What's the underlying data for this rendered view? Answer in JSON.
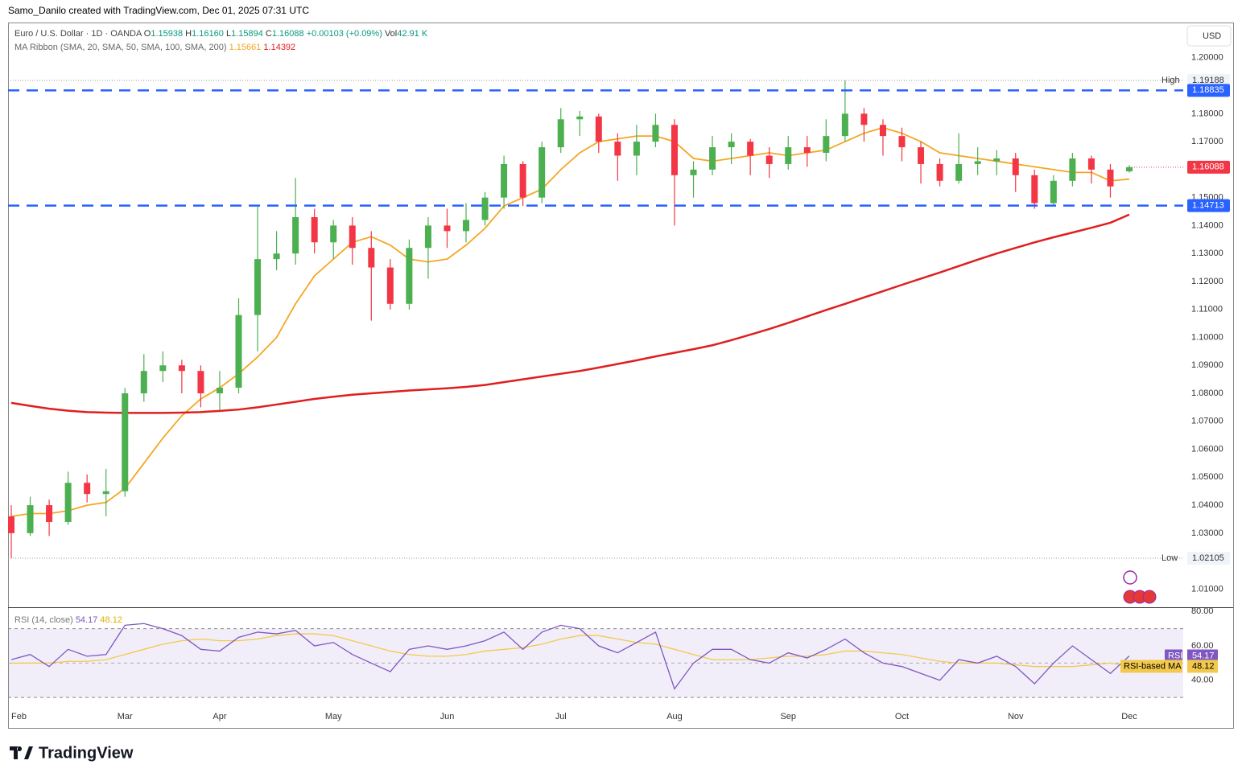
{
  "header": {
    "credit": "Samo_Danilo created with TradingView.com, Dec 01, 2025 07:31 UTC",
    "logo": "TradingView"
  },
  "chart_data": {
    "type": "candlestick",
    "symbol": "Euro / U.S. Dollar · 1D · OANDA",
    "currency": "USD",
    "legend": {
      "o": "O",
      "open": "1.15938",
      "h": "H",
      "high": "1.16160",
      "l": "L",
      "low": "1.15894",
      "c": "C",
      "close": "1.16088",
      "change": "+0.00103 (+0.09%)",
      "vol": "Vol",
      "volume": "42.91 K"
    },
    "indicator": "MA Ribbon (SMA, 20, SMA, 50, SMA, 100, SMA, 200)",
    "up_color": "#4caf50",
    "down_color": "#f23645",
    "categories": [
      "Feb",
      null,
      null,
      null,
      null,
      null,
      "Mar",
      null,
      null,
      null,
      null,
      "Apr",
      null,
      null,
      null,
      null,
      null,
      "May",
      null,
      null,
      null,
      null,
      null,
      "Jun",
      null,
      null,
      null,
      null,
      null,
      "Jul",
      null,
      null,
      null,
      null,
      null,
      "Aug",
      null,
      null,
      null,
      null,
      null,
      "Sep",
      null,
      null,
      null,
      null,
      null,
      "Oct",
      null,
      null,
      null,
      null,
      null,
      "Nov",
      null,
      null,
      null,
      null,
      null,
      "Dec"
    ],
    "ohlc": [
      [
        1.036,
        1.04,
        1.021,
        1.03
      ],
      [
        1.03,
        1.043,
        1.029,
        1.04
      ],
      [
        1.04,
        1.042,
        1.029,
        1.034
      ],
      [
        1.034,
        1.052,
        1.033,
        1.048
      ],
      [
        1.048,
        1.051,
        1.041,
        1.044
      ],
      [
        1.044,
        1.053,
        1.036,
        1.045
      ],
      [
        1.045,
        1.082,
        1.043,
        1.08
      ],
      [
        1.08,
        1.094,
        1.077,
        1.088
      ],
      [
        1.088,
        1.095,
        1.084,
        1.09
      ],
      [
        1.09,
        1.092,
        1.08,
        1.088
      ],
      [
        1.088,
        1.09,
        1.075,
        1.08
      ],
      [
        1.08,
        1.088,
        1.074,
        1.082
      ],
      [
        1.082,
        1.114,
        1.08,
        1.108
      ],
      [
        1.108,
        1.147,
        1.095,
        1.128
      ],
      [
        1.128,
        1.138,
        1.124,
        1.13
      ],
      [
        1.13,
        1.157,
        1.126,
        1.143
      ],
      [
        1.143,
        1.146,
        1.13,
        1.134
      ],
      [
        1.134,
        1.142,
        1.128,
        1.14
      ],
      [
        1.14,
        1.143,
        1.126,
        1.132
      ],
      [
        1.132,
        1.138,
        1.106,
        1.125
      ],
      [
        1.125,
        1.128,
        1.11,
        1.112
      ],
      [
        1.112,
        1.135,
        1.11,
        1.132
      ],
      [
        1.132,
        1.143,
        1.121,
        1.14
      ],
      [
        1.14,
        1.146,
        1.132,
        1.138
      ],
      [
        1.138,
        1.148,
        1.134,
        1.142
      ],
      [
        1.142,
        1.152,
        1.14,
        1.15
      ],
      [
        1.15,
        1.165,
        1.146,
        1.162
      ],
      [
        1.162,
        1.163,
        1.147,
        1.15
      ],
      [
        1.15,
        1.17,
        1.148,
        1.168
      ],
      [
        1.168,
        1.182,
        1.166,
        1.178
      ],
      [
        1.178,
        1.181,
        1.172,
        1.179
      ],
      [
        1.179,
        1.18,
        1.166,
        1.17
      ],
      [
        1.17,
        1.173,
        1.156,
        1.165
      ],
      [
        1.165,
        1.176,
        1.158,
        1.17
      ],
      [
        1.17,
        1.18,
        1.168,
        1.176
      ],
      [
        1.176,
        1.178,
        1.14,
        1.158
      ],
      [
        1.158,
        1.163,
        1.15,
        1.16
      ],
      [
        1.16,
        1.172,
        1.158,
        1.168
      ],
      [
        1.168,
        1.173,
        1.162,
        1.17
      ],
      [
        1.17,
        1.171,
        1.158,
        1.165
      ],
      [
        1.165,
        1.168,
        1.157,
        1.162
      ],
      [
        1.162,
        1.172,
        1.16,
        1.168
      ],
      [
        1.168,
        1.172,
        1.161,
        1.166
      ],
      [
        1.166,
        1.178,
        1.163,
        1.172
      ],
      [
        1.172,
        1.19188,
        1.17,
        1.18
      ],
      [
        1.18,
        1.182,
        1.17,
        1.176
      ],
      [
        1.176,
        1.178,
        1.165,
        1.172
      ],
      [
        1.172,
        1.175,
        1.163,
        1.168
      ],
      [
        1.168,
        1.17,
        1.155,
        1.162
      ],
      [
        1.162,
        1.164,
        1.154,
        1.156
      ],
      [
        1.156,
        1.173,
        1.155,
        1.162
      ],
      [
        1.162,
        1.168,
        1.158,
        1.163
      ],
      [
        1.163,
        1.167,
        1.158,
        1.164
      ],
      [
        1.164,
        1.166,
        1.152,
        1.158
      ],
      [
        1.158,
        1.16,
        1.146,
        1.148
      ],
      [
        1.148,
        1.158,
        1.147,
        1.156
      ],
      [
        1.156,
        1.166,
        1.154,
        1.164
      ],
      [
        1.164,
        1.165,
        1.155,
        1.16
      ],
      [
        1.16,
        1.162,
        1.15,
        1.154
      ],
      [
        1.15938,
        1.1616,
        1.15894,
        1.16088
      ]
    ],
    "series": [
      {
        "color": "#f5a623",
        "value_label": "1.15661",
        "values": [
          1.036,
          1.037,
          1.037,
          1.038,
          1.04,
          1.041,
          1.046,
          1.055,
          1.064,
          1.072,
          1.078,
          1.082,
          1.087,
          1.093,
          1.1,
          1.112,
          1.122,
          1.128,
          1.134,
          1.136,
          1.133,
          1.128,
          1.127,
          1.128,
          1.133,
          1.139,
          1.147,
          1.15,
          1.153,
          1.16,
          1.166,
          1.17,
          1.171,
          1.172,
          1.172,
          1.17,
          1.164,
          1.163,
          1.164,
          1.165,
          1.166,
          1.165,
          1.166,
          1.167,
          1.17,
          1.173,
          1.175,
          1.173,
          1.17,
          1.166,
          1.165,
          1.164,
          1.163,
          1.162,
          1.161,
          1.16,
          1.159,
          1.159,
          1.156,
          1.15661
        ]
      },
      {
        "color": "#e01e1e",
        "value_label": "1.14392",
        "values": [
          1.0766,
          1.0755,
          1.0745,
          1.0738,
          1.0733,
          1.0731,
          1.073,
          1.073,
          1.073,
          1.0731,
          1.0733,
          1.0737,
          1.0742,
          1.075,
          1.076,
          1.077,
          1.078,
          1.0788,
          1.0795,
          1.08,
          1.0805,
          1.081,
          1.0814,
          1.0818,
          1.0823,
          1.083,
          1.084,
          1.085,
          1.086,
          1.087,
          1.088,
          1.0892,
          1.0905,
          1.0918,
          1.0932,
          1.0945,
          1.0958,
          1.0972,
          1.099,
          1.101,
          1.103,
          1.1052,
          1.1075,
          1.1098,
          1.112,
          1.1143,
          1.1165,
          1.1188,
          1.121,
          1.1232,
          1.1255,
          1.1278,
          1.13,
          1.132,
          1.134,
          1.1358,
          1.1375,
          1.1392,
          1.141,
          1.14392
        ]
      }
    ],
    "ylim": [
      1.0035,
      1.2126
    ],
    "yticks": [
      {
        "value": 1.2,
        "label": "1.20000"
      },
      {
        "value": 1.18,
        "label": "1.18000"
      },
      {
        "value": 1.17,
        "label": "1.17000"
      },
      {
        "value": 1.15,
        "label": "1.15000"
      },
      {
        "value": 1.14,
        "label": "1.14000"
      },
      {
        "value": 1.13,
        "label": "1.13000"
      },
      {
        "value": 1.12,
        "label": "1.12000"
      },
      {
        "value": 1.11,
        "label": "1.11000"
      },
      {
        "value": 1.1,
        "label": "1.10000"
      },
      {
        "value": 1.09,
        "label": "1.09000"
      },
      {
        "value": 1.08,
        "label": "1.08000"
      },
      {
        "value": 1.07,
        "label": "1.07000"
      },
      {
        "value": 1.06,
        "label": "1.06000"
      },
      {
        "value": 1.05,
        "label": "1.05000"
      },
      {
        "value": 1.04,
        "label": "1.04000"
      },
      {
        "value": 1.03,
        "label": "1.03000"
      },
      {
        "value": 1.01,
        "label": "1.01000"
      }
    ],
    "grid": false,
    "levels": [
      {
        "value": 1.18835,
        "label": "1.18835",
        "color": "#2962ff"
      },
      {
        "value": 1.14713,
        "label": "1.14713",
        "color": "#2962ff"
      }
    ],
    "high": {
      "name": "High",
      "value": 1.19188,
      "label": "1.19188"
    },
    "low": {
      "name": "Low",
      "value": 1.02105,
      "label": "1.02105"
    },
    "last": {
      "value": 1.16088,
      "label": "1.16088"
    },
    "rsi": {
      "title": "RSI (14, close)",
      "tag": "RSI",
      "color": "#7e57c2",
      "value_label": "54.17",
      "values": [
        52,
        55,
        48,
        58,
        54,
        55,
        72,
        73,
        70,
        66,
        58,
        57,
        65,
        68,
        67,
        69,
        60,
        62,
        55,
        50,
        45,
        58,
        60,
        58,
        60,
        63,
        68,
        58,
        68,
        72,
        70,
        60,
        56,
        62,
        68,
        35,
        50,
        58,
        58,
        52,
        50,
        56,
        53,
        58,
        64,
        56,
        50,
        48,
        44,
        40,
        52,
        50,
        54,
        48,
        38,
        50,
        60,
        52,
        44,
        54.17
      ],
      "ma": {
        "name": "RSI-based MA",
        "color": "#f2c94c",
        "value_label": "48.12",
        "values": [
          50,
          50,
          50,
          51,
          51,
          52,
          55,
          58,
          61,
          63,
          64,
          63,
          63,
          64,
          66,
          67,
          67,
          66,
          63,
          60,
          57,
          55,
          54,
          54,
          55,
          57,
          58,
          59,
          61,
          64,
          66,
          66,
          64,
          62,
          61,
          58,
          55,
          52,
          52,
          52,
          53,
          54,
          54,
          55,
          57,
          57,
          56,
          55,
          53,
          51,
          50,
          50,
          50,
          49,
          48,
          48,
          48,
          49,
          50,
          48.12
        ]
      },
      "ylim": [
        24,
        82
      ],
      "yticks": [
        {
          "value": 80,
          "label": "80.00"
        },
        {
          "value": 60,
          "label": "60.00"
        },
        {
          "value": 40,
          "label": "40.00"
        }
      ],
      "bands": [
        70,
        30
      ],
      "mid": 50
    }
  }
}
